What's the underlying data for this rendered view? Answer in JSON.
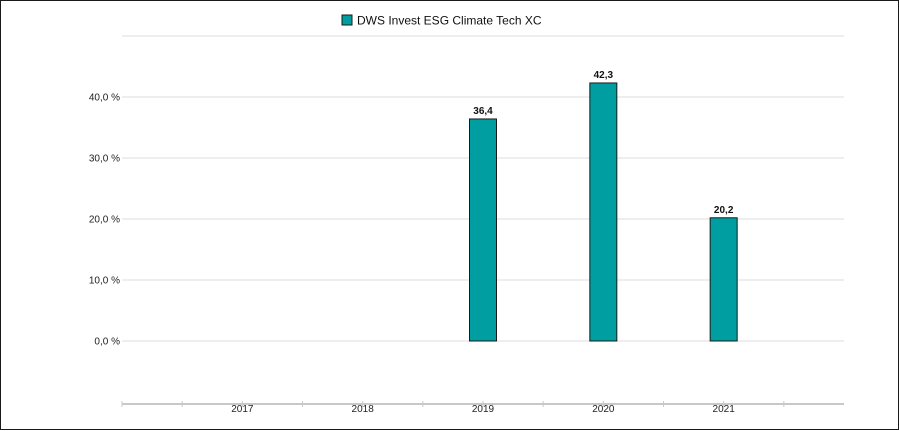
{
  "chart_data": {
    "type": "bar",
    "categories": [
      "2017",
      "2018",
      "2019",
      "2020",
      "2021"
    ],
    "series": [
      {
        "name": "DWS Invest ESG Climate Tech  XC",
        "values": [
          null,
          null,
          36.4,
          42.3,
          20.2
        ],
        "color": "#009ea0"
      }
    ],
    "data_labels": [
      "",
      "",
      "36,4",
      "42,3",
      "20,2"
    ],
    "y_ticks": [
      {
        "value": 0,
        "label": "0,0 %"
      },
      {
        "value": 10,
        "label": "10,0 %"
      },
      {
        "value": 20,
        "label": "20,0 %"
      },
      {
        "value": 30,
        "label": "30,0 %"
      },
      {
        "value": 40,
        "label": "40,0 %"
      }
    ],
    "ylim": [
      -9,
      50
    ],
    "grid": true,
    "legend_position": "top-center",
    "title": "",
    "xlabel": "",
    "ylabel": ""
  },
  "colors": {
    "bar": "#009ea0",
    "bar_border": "#1a1a1a",
    "grid": "#dddddd"
  }
}
